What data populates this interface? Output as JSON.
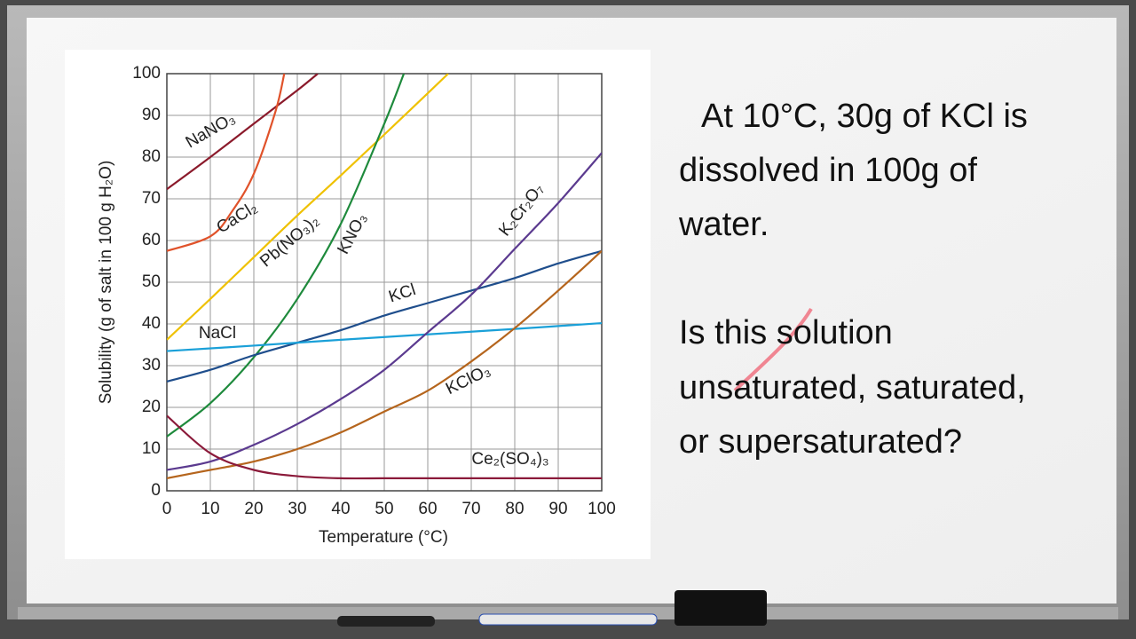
{
  "chart_data": {
    "type": "line",
    "xlabel": "Temperature (°C)",
    "ylabel": "Solubility (g of salt in 100 g H₂O)",
    "xlim": [
      0,
      100
    ],
    "ylim": [
      0,
      100
    ],
    "xticks": [
      0,
      10,
      20,
      30,
      40,
      50,
      60,
      70,
      80,
      90,
      100
    ],
    "yticks": [
      0,
      10,
      20,
      30,
      40,
      50,
      60,
      70,
      80,
      90,
      100
    ],
    "grid": true,
    "series": [
      {
        "name": "NaNO₃",
        "color": "#8b1a2b",
        "x": [
          0,
          10,
          20,
          30,
          34.7
        ],
        "values": [
          72.3,
          80,
          88,
          96,
          100
        ]
      },
      {
        "name": "CaCl₂",
        "color": "#e0522a",
        "x": [
          0,
          10,
          15,
          20,
          25,
          27
        ],
        "values": [
          57.5,
          61,
          67,
          76,
          91,
          100
        ]
      },
      {
        "name": "Pb(NO₃)₂",
        "color": "#efc100",
        "x": [
          0,
          10,
          20,
          30,
          40,
          50,
          60,
          64.7
        ],
        "values": [
          36.2,
          46,
          56,
          66,
          75.6,
          85.4,
          95.3,
          100
        ]
      },
      {
        "name": "KNO₃",
        "color": "#1e8a3c",
        "x": [
          0,
          10,
          20,
          30,
          40,
          50,
          54.5
        ],
        "values": [
          13,
          21,
          32,
          46,
          64,
          88,
          100
        ]
      },
      {
        "name": "KCl",
        "color": "#1f4e8c",
        "x": [
          0,
          10,
          20,
          30,
          40,
          50,
          60,
          70,
          80,
          90,
          100
        ],
        "values": [
          26.2,
          29,
          32.5,
          35.5,
          38.5,
          42,
          45,
          48,
          51,
          54.5,
          57.5
        ]
      },
      {
        "name": "NaCl",
        "color": "#1aa0d8",
        "x": [
          0,
          20,
          40,
          60,
          80,
          100
        ],
        "values": [
          33.5,
          34.8,
          36.2,
          37.5,
          38.8,
          40.2
        ]
      },
      {
        "name": "K₂Cr₂O₇",
        "color": "#5b3a8f",
        "x": [
          0,
          10,
          20,
          30,
          40,
          50,
          60,
          70,
          80,
          90,
          100
        ],
        "values": [
          5,
          7,
          11,
          16,
          22,
          29,
          38,
          47,
          58,
          69,
          81
        ]
      },
      {
        "name": "KClO₃",
        "color": "#b5651d",
        "x": [
          0,
          10,
          20,
          30,
          40,
          50,
          60,
          70,
          80,
          90,
          100
        ],
        "values": [
          3,
          5,
          7,
          10,
          14,
          19,
          24,
          31,
          39,
          48,
          57.5
        ]
      },
      {
        "name": "Ce₂(SO₄)₃",
        "color": "#8b1a3a",
        "x": [
          0,
          10,
          20,
          30,
          40,
          50,
          60,
          70,
          80,
          90,
          100
        ],
        "values": [
          18,
          9,
          5,
          3.5,
          3,
          3,
          3,
          3,
          3,
          3,
          3
        ]
      }
    ]
  },
  "question": {
    "statement": [
      "At 10°C, 30g of KCl is",
      "dissolved in 100g of",
      "water."
    ],
    "prompt": [
      "Is this solution",
      "unsaturated, saturated,",
      "or supersaturated?"
    ]
  }
}
